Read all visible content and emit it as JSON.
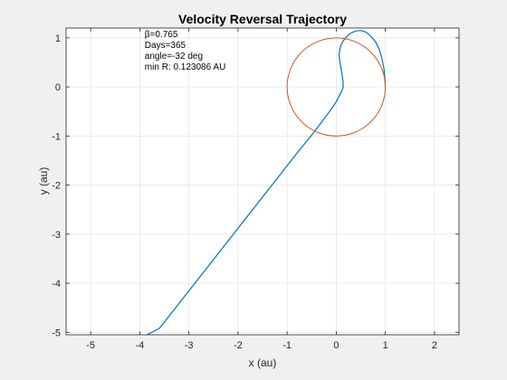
{
  "chart_data": {
    "type": "line",
    "title": "Velocity Reversal Trajectory",
    "xlabel": "x (au)",
    "ylabel": "y (au)",
    "xlim": [
      -5.5,
      2.5
    ],
    "ylim": [
      -5.05,
      1.2
    ],
    "x_ticks": [
      -5,
      -4,
      -3,
      -2,
      -1,
      0,
      1,
      2
    ],
    "x_tick_labels": [
      "-5",
      "-4",
      "-3",
      "-2",
      "-1",
      "0",
      "1",
      "2"
    ],
    "y_ticks": [
      -5,
      -4,
      -3,
      -2,
      -1,
      0,
      1
    ],
    "y_tick_labels": [
      "-5",
      "-4",
      "-3",
      "-2",
      "-1",
      "0",
      "1"
    ],
    "grid": true,
    "annotations": [
      "β=0.765",
      "Days=365",
      "angle=-32 deg",
      "min R: 0.123086 AU"
    ],
    "series": [
      {
        "color": "#0072BD",
        "x": [
          1.0,
          0.99,
          0.97,
          0.93,
          0.88,
          0.8,
          0.7,
          0.6,
          0.5,
          0.4,
          0.3,
          0.22,
          0.15,
          0.1,
          0.07,
          0.06,
          0.07,
          0.09,
          0.11,
          0.13,
          0.14,
          0.14,
          0.12,
          0.1,
          0.05,
          0.0,
          -0.1,
          -0.3,
          -0.5,
          -0.8,
          -1.2,
          -1.6,
          -2.0,
          -2.4,
          -2.8,
          -3.2,
          -3.6,
          -3.85
        ],
        "y": [
          0.0,
          0.18,
          0.38,
          0.58,
          0.76,
          0.92,
          1.04,
          1.12,
          1.15,
          1.14,
          1.1,
          1.03,
          0.95,
          0.86,
          0.76,
          0.65,
          0.54,
          0.42,
          0.3,
          0.18,
          0.08,
          0.0,
          -0.06,
          -0.11,
          -0.2,
          -0.3,
          -0.45,
          -0.72,
          -0.98,
          -1.35,
          -1.86,
          -2.37,
          -2.88,
          -3.39,
          -3.9,
          -4.41,
          -4.92,
          -5.05
        ]
      },
      {
        "color": "#D95319",
        "shape": "circle",
        "center": [
          0,
          0
        ],
        "radius": 1
      }
    ]
  }
}
